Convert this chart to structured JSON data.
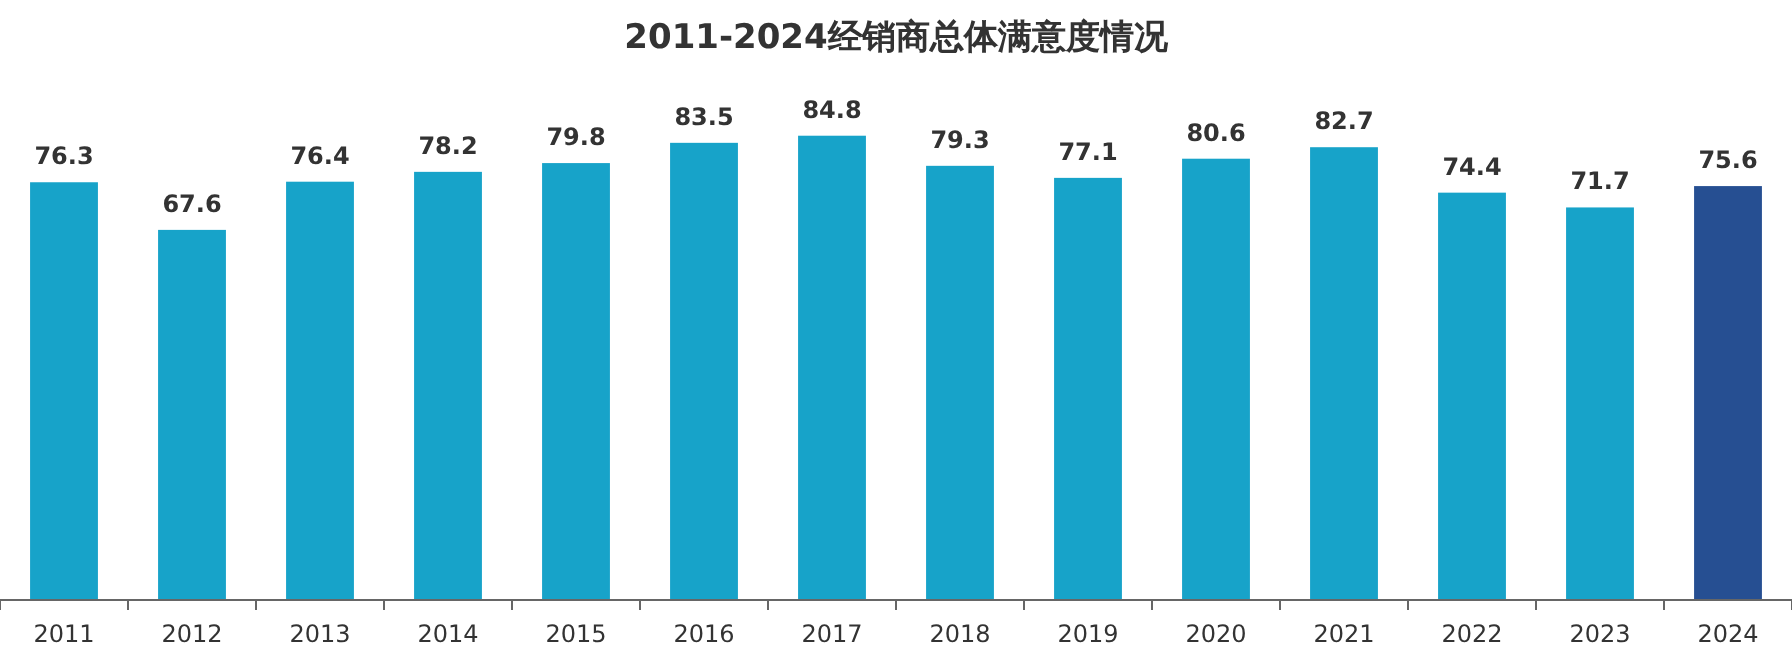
{
  "chart_data": {
    "type": "bar",
    "title": "2011-2024经销商总体满意度情况",
    "categories": [
      "2011",
      "2012",
      "2013",
      "2014",
      "2015",
      "2016",
      "2017",
      "2018",
      "2019",
      "2020",
      "2021",
      "2022",
      "2023",
      "2024"
    ],
    "values": [
      76.3,
      67.6,
      76.4,
      78.2,
      79.8,
      83.5,
      84.8,
      79.3,
      77.1,
      80.6,
      82.7,
      74.4,
      71.7,
      75.6
    ],
    "colors": [
      "#17a3c9",
      "#17a3c9",
      "#17a3c9",
      "#17a3c9",
      "#17a3c9",
      "#17a3c9",
      "#17a3c9",
      "#17a3c9",
      "#17a3c9",
      "#17a3c9",
      "#17a3c9",
      "#17a3c9",
      "#17a3c9",
      "#264f92"
    ],
    "data_labels": true
  }
}
